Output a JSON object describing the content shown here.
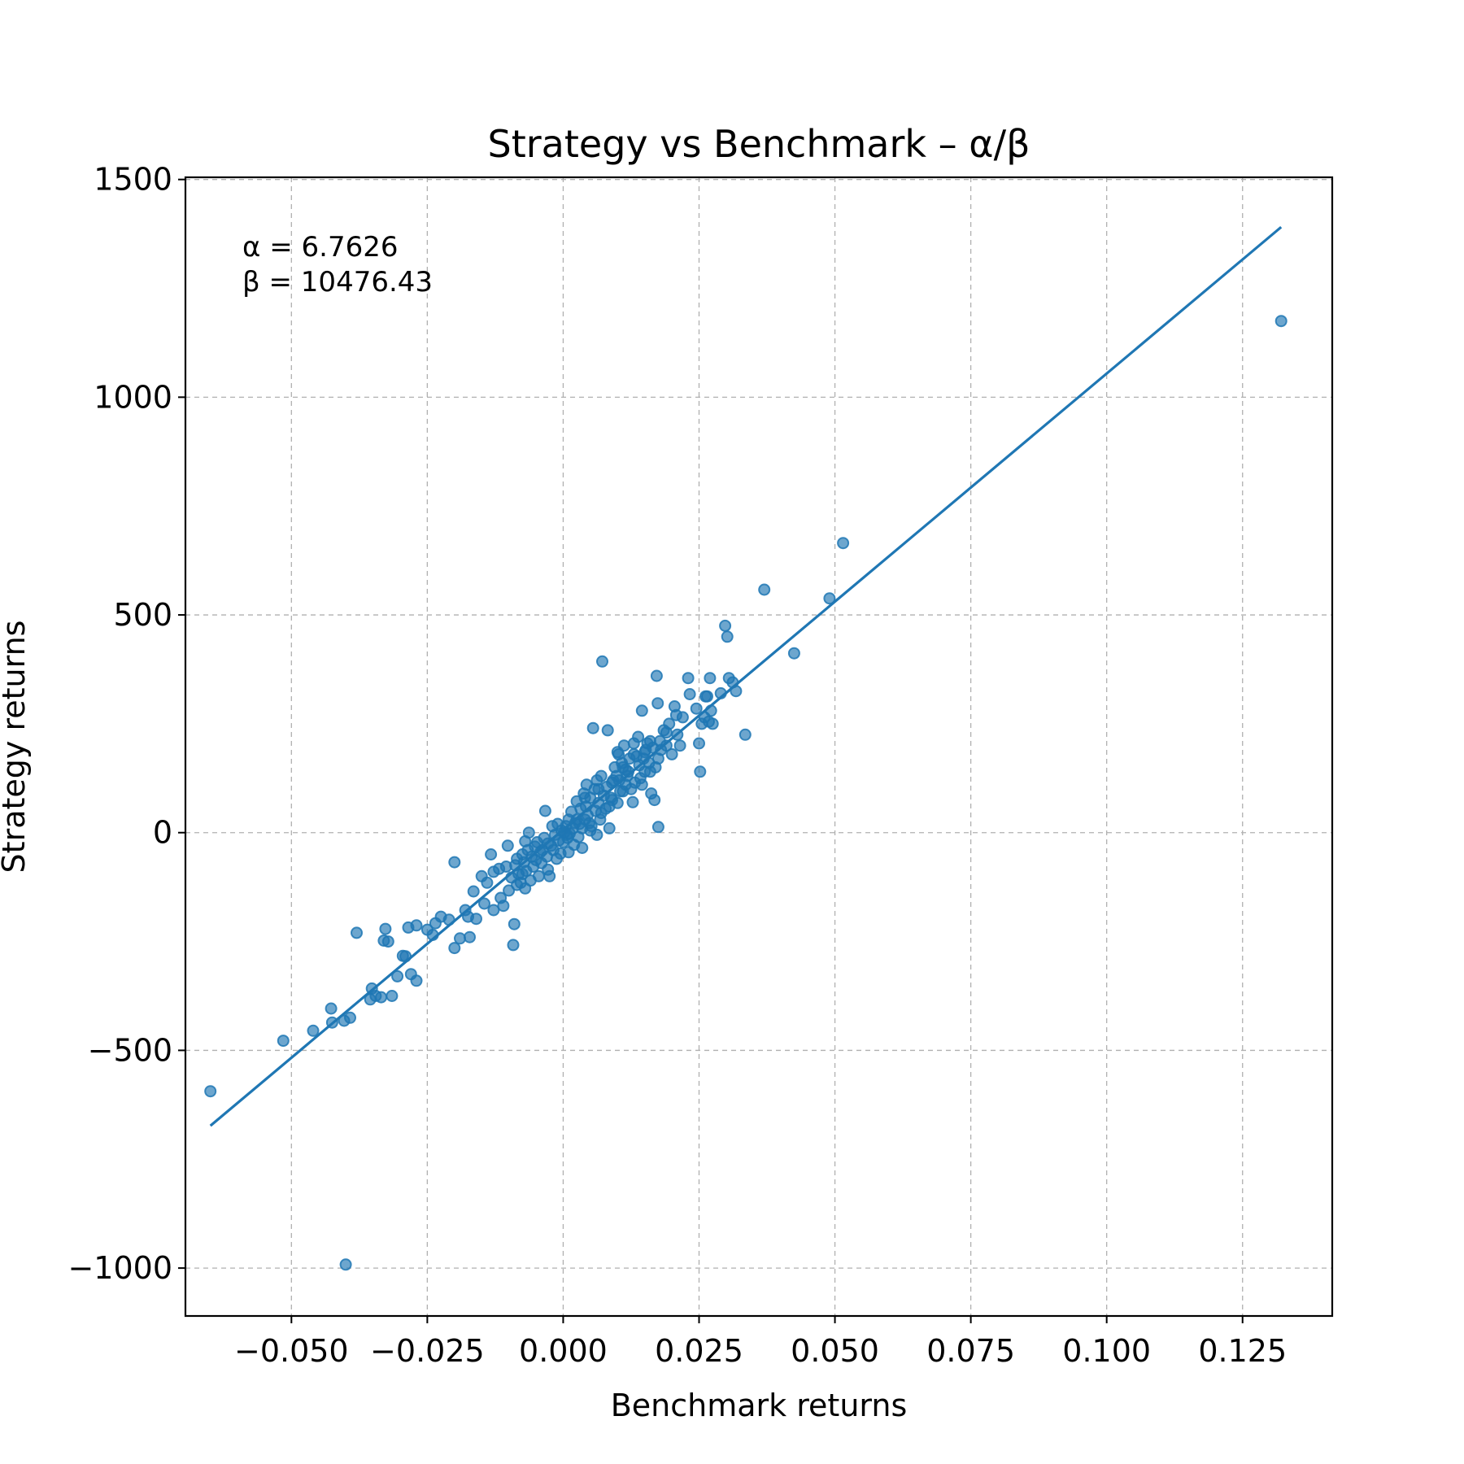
{
  "chart_data": {
    "type": "scatter",
    "title": "Strategy vs Benchmark – α/β",
    "xlabel": "Benchmark returns",
    "ylabel": "Strategy returns",
    "xlim": [
      -0.0695,
      0.1415
    ],
    "ylim": [
      -1110,
      1505
    ],
    "xticks": [
      -0.05,
      -0.025,
      0.0,
      0.025,
      0.05,
      0.075,
      0.1,
      0.125
    ],
    "xtick_labels": [
      "−0.050",
      "−0.025",
      "0.000",
      "0.025",
      "0.050",
      "0.075",
      "0.100",
      "0.125"
    ],
    "yticks": [
      -1000,
      -500,
      0,
      500,
      1000,
      1500
    ],
    "ytick_labels": [
      "−1000",
      "−500",
      "0",
      "500",
      "1000",
      "1500"
    ],
    "grid": true,
    "annotations": [
      "α = 6.7626",
      "β = 10476.43"
    ],
    "regression_line": {
      "alpha": 6.7626,
      "beta": 10476.43,
      "x_range": [
        -0.0649,
        0.1321
      ]
    },
    "series": [
      {
        "name": "returns",
        "marker_color": "#1f77b4",
        "points": [
          [
            -0.0649,
            -594
          ],
          [
            -0.0515,
            -478
          ],
          [
            -0.046,
            -455
          ],
          [
            -0.0427,
            -404
          ],
          [
            -0.0425,
            -436
          ],
          [
            -0.0403,
            -432
          ],
          [
            -0.0392,
            -425
          ],
          [
            -0.038,
            -230
          ],
          [
            -0.0355,
            -383
          ],
          [
            -0.0352,
            -358
          ],
          [
            -0.0345,
            -375
          ],
          [
            -0.0335,
            -378
          ],
          [
            -0.033,
            -248
          ],
          [
            -0.0327,
            -221
          ],
          [
            -0.0322,
            -250
          ],
          [
            -0.0315,
            -375
          ],
          [
            -0.0305,
            -330
          ],
          [
            -0.0295,
            -283
          ],
          [
            -0.029,
            -284
          ],
          [
            -0.0285,
            -218
          ],
          [
            -0.028,
            -325
          ],
          [
            -0.027,
            -213
          ],
          [
            -0.027,
            -340
          ],
          [
            -0.025,
            -223
          ],
          [
            -0.024,
            -235
          ],
          [
            -0.0235,
            -208
          ],
          [
            -0.0225,
            -193
          ],
          [
            -0.021,
            -200
          ],
          [
            -0.02,
            -265
          ],
          [
            -0.02,
            -68
          ],
          [
            -0.019,
            -243
          ],
          [
            -0.018,
            -178
          ],
          [
            -0.0175,
            -193
          ],
          [
            -0.0172,
            -240
          ],
          [
            -0.0165,
            -135
          ],
          [
            -0.016,
            -198
          ],
          [
            -0.015,
            -100
          ],
          [
            -0.0145,
            -163
          ],
          [
            -0.014,
            -115
          ],
          [
            -0.0133,
            -50
          ],
          [
            -0.0128,
            -178
          ],
          [
            -0.0118,
            -83
          ],
          [
            -0.0115,
            -150
          ],
          [
            -0.011,
            -168
          ],
          [
            -0.0102,
            -30
          ],
          [
            -0.01,
            -133
          ],
          [
            -0.0095,
            -103
          ],
          [
            -0.0092,
            -258
          ],
          [
            -0.009,
            -210
          ],
          [
            -0.0088,
            -75
          ],
          [
            -0.0085,
            -60
          ],
          [
            -0.0082,
            -95
          ],
          [
            -0.0078,
            -115
          ],
          [
            -0.0075,
            -50
          ],
          [
            -0.0072,
            -68
          ],
          [
            -0.007,
            -128
          ],
          [
            -0.0068,
            -88
          ],
          [
            -0.0065,
            -40
          ],
          [
            -0.0063,
            0
          ],
          [
            -0.006,
            -110
          ],
          [
            -0.0058,
            -55
          ],
          [
            -0.0055,
            -78
          ],
          [
            -0.0052,
            -32
          ],
          [
            -0.005,
            -63
          ],
          [
            -0.0048,
            -22
          ],
          [
            -0.0045,
            -100
          ],
          [
            -0.0042,
            -45
          ],
          [
            -0.004,
            -70
          ],
          [
            -0.0038,
            -40
          ],
          [
            -0.0035,
            -12
          ],
          [
            -0.0033,
            50
          ],
          [
            -0.003,
            -55
          ],
          [
            -0.0028,
            -85
          ],
          [
            -0.0025,
            -100
          ],
          [
            -0.0022,
            -30
          ],
          [
            -0.002,
            15
          ],
          [
            -0.0018,
            -40
          ],
          [
            -0.0015,
            -5
          ],
          [
            -0.0012,
            -60
          ],
          [
            -0.001,
            20
          ],
          [
            -0.0008,
            -18
          ],
          [
            -0.0005,
            -48
          ],
          [
            -0.0003,
            5
          ],
          [
            0.0,
            -22
          ],
          [
            0.0002,
            0
          ],
          [
            0.0005,
            15
          ],
          [
            0.0008,
            -12
          ],
          [
            0.001,
            30
          ],
          [
            0.0012,
            -2
          ],
          [
            0.0015,
            48
          ],
          [
            0.0018,
            10
          ],
          [
            0.002,
            -28
          ],
          [
            0.0022,
            22
          ],
          [
            0.0025,
            72
          ],
          [
            0.0028,
            -10
          ],
          [
            0.003,
            20
          ],
          [
            0.0032,
            55
          ],
          [
            0.0035,
            10
          ],
          [
            0.0038,
            90
          ],
          [
            0.004,
            30
          ],
          [
            0.0042,
            60
          ],
          [
            0.0045,
            40
          ],
          [
            0.0048,
            22
          ],
          [
            0.005,
            80
          ],
          [
            0.0052,
            15
          ],
          [
            0.0055,
            240
          ],
          [
            0.0058,
            100
          ],
          [
            0.006,
            50
          ],
          [
            0.0062,
            120
          ],
          [
            0.0065,
            68
          ],
          [
            0.0068,
            30
          ],
          [
            0.007,
            130
          ],
          [
            0.0072,
            393
          ],
          [
            0.0075,
            85
          ],
          [
            0.0078,
            55
          ],
          [
            0.008,
            105
          ],
          [
            0.0082,
            235
          ],
          [
            0.0085,
            60
          ],
          [
            0.0088,
            80
          ],
          [
            0.009,
            115
          ],
          [
            0.0092,
            120
          ],
          [
            0.0095,
            150
          ],
          [
            0.0098,
            130
          ],
          [
            0.01,
            68
          ],
          [
            0.0102,
            180
          ],
          [
            0.0105,
            95
          ],
          [
            0.0108,
            160
          ],
          [
            0.011,
            150
          ],
          [
            0.0112,
            200
          ],
          [
            0.0115,
            110
          ],
          [
            0.0118,
            130
          ],
          [
            0.012,
            140
          ],
          [
            0.0122,
            170
          ],
          [
            0.0125,
            100
          ],
          [
            0.0128,
            70
          ],
          [
            0.013,
            180
          ],
          [
            0.0132,
            115
          ],
          [
            0.0135,
            175
          ],
          [
            0.0138,
            220
          ],
          [
            0.014,
            155
          ],
          [
            0.0142,
            125
          ],
          [
            0.0145,
            280
          ],
          [
            0.0148,
            170
          ],
          [
            0.015,
            140
          ],
          [
            0.0152,
            190
          ],
          [
            0.0155,
            205
          ],
          [
            0.0158,
            160
          ],
          [
            0.016,
            210
          ],
          [
            0.0162,
            90
          ],
          [
            0.0165,
            195
          ],
          [
            0.0168,
            75
          ],
          [
            0.017,
            150
          ],
          [
            0.0172,
            360
          ],
          [
            0.0174,
            297
          ],
          [
            0.0175,
            13
          ],
          [
            0.0178,
            210
          ],
          [
            0.018,
            190
          ],
          [
            0.0185,
            235
          ],
          [
            0.019,
            200
          ],
          [
            0.0195,
            250
          ],
          [
            0.02,
            180
          ],
          [
            0.0205,
            290
          ],
          [
            0.0208,
            270
          ],
          [
            0.021,
            225
          ],
          [
            0.0215,
            200
          ],
          [
            0.022,
            265
          ],
          [
            0.023,
            355
          ],
          [
            0.0233,
            318
          ],
          [
            0.0245,
            285
          ],
          [
            0.025,
            205
          ],
          [
            0.0252,
            140
          ],
          [
            0.0255,
            250
          ],
          [
            0.026,
            265
          ],
          [
            0.0262,
            313
          ],
          [
            0.0265,
            313
          ],
          [
            0.0268,
            255
          ],
          [
            0.027,
            355
          ],
          [
            0.0272,
            280
          ],
          [
            0.0275,
            250
          ],
          [
            0.029,
            320
          ],
          [
            0.0298,
            475
          ],
          [
            0.0302,
            450
          ],
          [
            0.0305,
            355
          ],
          [
            0.0312,
            345
          ],
          [
            0.0318,
            325
          ],
          [
            0.0335,
            225
          ],
          [
            0.037,
            558
          ],
          [
            0.0425,
            412
          ],
          [
            0.049,
            538
          ],
          [
            0.0515,
            665
          ],
          [
            0.1321,
            1175
          ],
          [
            -0.04,
            -992
          ],
          [
            -0.0085,
            -120
          ],
          [
            -0.0105,
            -78
          ],
          [
            -0.0128,
            -90
          ],
          [
            -0.0075,
            -95
          ],
          [
            0.0035,
            -35
          ],
          [
            0.004,
            80
          ],
          [
            0.0065,
            100
          ],
          [
            0.009,
            75
          ],
          [
            0.0115,
            145
          ],
          [
            0.0145,
            110
          ],
          [
            0.016,
            140
          ],
          [
            0.019,
            230
          ],
          [
            0.0062,
            -5
          ],
          [
            0.0085,
            10
          ],
          [
            0.005,
            5
          ],
          [
            0.0025,
            30
          ],
          [
            0.001,
            -45
          ],
          [
            0.007,
            45
          ],
          [
            0.013,
            205
          ],
          [
            0.01,
            185
          ],
          [
            0.015,
            185
          ],
          [
            0.0175,
            170
          ],
          [
            0.011,
            95
          ],
          [
            -0.007,
            -20
          ],
          [
            -0.0028,
            -25
          ],
          [
            0.0007,
            -5
          ],
          [
            0.0043,
            110
          ],
          [
            0.0103,
            120
          ]
        ]
      }
    ]
  }
}
